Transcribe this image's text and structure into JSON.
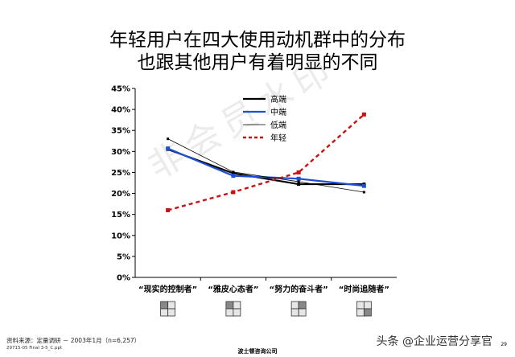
{
  "header": {
    "line1": "年轻用户在四大使用动机群中的分布",
    "line2": "也跟其他用户有着明显的不同"
  },
  "footer": {
    "source": "资料来源：定量调研 － 2003年1月（n=6,257）",
    "file": "29715-05 Final 3-5_C.ppt",
    "company": "波士顿咨询公司",
    "credit": "头条 @企业运营分享官",
    "page": "29"
  },
  "watermark": "非会员水印",
  "colors": {
    "high": "#000000",
    "mid": "#1f4fd1",
    "low": "#000000",
    "young": "#cc1111"
  },
  "chart_data": {
    "type": "line",
    "categories": [
      "“现实的控制者”",
      "“雅皮心态者”",
      "“努力的奋斗者”",
      "“时尚追随者”"
    ],
    "ylim": [
      0,
      45
    ],
    "yticks": [
      "0%",
      "5%",
      "10%",
      "15%",
      "20%",
      "25%",
      "30%",
      "35%",
      "40%",
      "45%"
    ],
    "series": [
      {
        "name": "高端",
        "values": [
          30.5,
          24.8,
          22.2,
          22.2
        ]
      },
      {
        "name": "中端",
        "values": [
          30.7,
          24.2,
          23.5,
          21.8
        ]
      },
      {
        "name": "低端",
        "values": [
          33.0,
          25.1,
          22.8,
          20.3
        ]
      },
      {
        "name": "年轻",
        "values": [
          16.0,
          20.3,
          25.0,
          38.8
        ]
      }
    ],
    "legend": "top-right"
  }
}
